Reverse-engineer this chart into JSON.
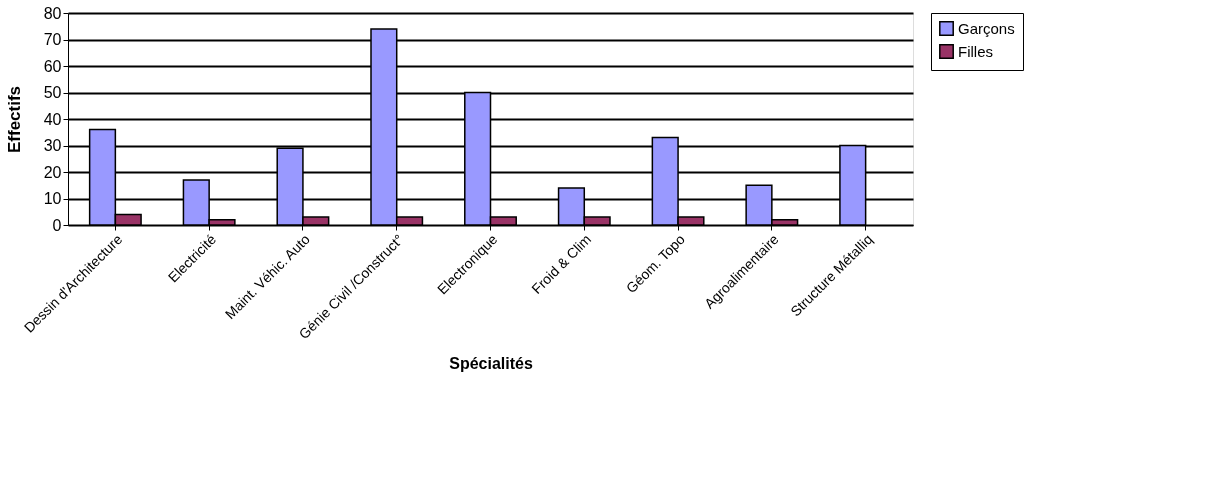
{
  "chart_data": {
    "type": "bar",
    "xlabel": "Spécialités",
    "ylabel": "Effectifs",
    "categories": [
      "Dessin d'Architecture",
      "Electricité",
      "Maint. Véhic. Auto",
      "Génie Civil /Construct°",
      "Electronique",
      "Froid & Clim",
      "Géom. Topo",
      "Agroalimentaire",
      "Structure Métalliq"
    ],
    "series": [
      {
        "name": "Garçons",
        "color": "#9999ff",
        "values": [
          36,
          17,
          29,
          74,
          50,
          14,
          33,
          15,
          30
        ]
      },
      {
        "name": "Filles",
        "color": "#993366",
        "values": [
          4,
          2,
          3,
          3,
          3,
          3,
          3,
          2,
          null
        ]
      }
    ],
    "ylim": [
      0,
      80
    ],
    "yticks": [
      0,
      10,
      20,
      30,
      40,
      50,
      60,
      70,
      80
    ],
    "grid": "y",
    "legend": "right"
  }
}
